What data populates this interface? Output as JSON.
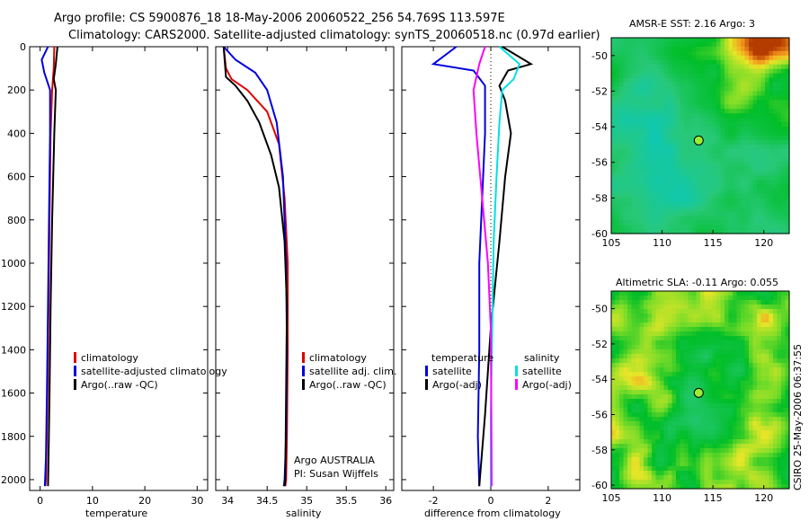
{
  "title": {
    "line1": "Argo profile: CS 5900876_18 18-May-2006 20060522_256 54.769S 113.597E",
    "line2": "Climatology: CARS2000. Satellite-adjusted climatology: synTS_20060518.nc (0.97d earlier)"
  },
  "colors": {
    "climatology": "#dd0000",
    "satellite": "#0000dd",
    "argo": "#000000",
    "sat_sal": "#00e0e0",
    "argo_adj_sal": "#ff00ff"
  },
  "chart_data": [
    {
      "type": "line",
      "name": "temperature",
      "xlabel": "temperature",
      "ylabel": "",
      "xlim": [
        -2,
        32
      ],
      "ylim": [
        2050,
        0
      ],
      "xticks": [
        0,
        10,
        20,
        30
      ],
      "yticks": [
        0,
        200,
        400,
        600,
        800,
        1000,
        1200,
        1400,
        1600,
        1800,
        2000
      ],
      "series": [
        {
          "name": "climatology",
          "color": "#dd0000",
          "x": [
            2.7,
            2.6,
            2.3,
            2.0,
            1.8,
            1.6,
            1.4,
            1.2,
            1.1,
            1.0
          ],
          "y": [
            0,
            100,
            200,
            400,
            800,
            1200,
            1600,
            1900,
            2000,
            2030
          ]
        },
        {
          "name": "satellite-adjusted climatology",
          "color": "#0000dd",
          "x": [
            1.5,
            0.3,
            0.8,
            1.9,
            1.9,
            1.7,
            1.5,
            1.3,
            1.1,
            0.9
          ],
          "y": [
            0,
            60,
            120,
            200,
            400,
            800,
            1200,
            1600,
            1900,
            2030
          ]
        },
        {
          "name": "Argo(..raw -QC)",
          "color": "#000000",
          "x": [
            3.3,
            3.0,
            2.6,
            3.0,
            2.7,
            2.5,
            2.3,
            2.0,
            1.8,
            1.6,
            1.5
          ],
          "y": [
            0,
            80,
            150,
            200,
            400,
            600,
            800,
            1200,
            1600,
            1900,
            2030
          ]
        }
      ],
      "legend": [
        "climatology",
        "satellite-adjusted climatology",
        "Argo(..raw -QC)"
      ]
    },
    {
      "type": "line",
      "name": "salinity",
      "xlabel": "salinity",
      "ylabel": "",
      "xlim": [
        33.85,
        36.1
      ],
      "ylim": [
        2050,
        0
      ],
      "xticks": [
        34,
        34.5,
        35,
        35.5,
        36
      ],
      "yticks": [
        0,
        200,
        400,
        600,
        800,
        1000,
        1200,
        1400,
        1600,
        1800,
        2000
      ],
      "series": [
        {
          "name": "climatology",
          "color": "#dd0000",
          "x": [
            33.95,
            33.98,
            34.05,
            34.25,
            34.5,
            34.65,
            34.72,
            34.76,
            34.76,
            34.75,
            34.74,
            34.73
          ],
          "y": [
            0,
            100,
            150,
            200,
            300,
            450,
            700,
            1000,
            1400,
            1800,
            2000,
            2030
          ]
        },
        {
          "name": "satellite adj. clim.",
          "color": "#0000dd",
          "x": [
            33.95,
            34.1,
            34.35,
            34.5,
            34.62,
            34.7,
            34.74,
            34.75,
            34.74,
            34.72,
            34.71
          ],
          "y": [
            0,
            60,
            120,
            200,
            350,
            600,
            1000,
            1400,
            1800,
            2000,
            2030
          ]
        },
        {
          "name": "Argo(..raw -QC)",
          "color": "#000000",
          "x": [
            33.95,
            33.98,
            34.1,
            34.25,
            34.4,
            34.55,
            34.65,
            34.72,
            34.75,
            34.74,
            34.73,
            34.72
          ],
          "y": [
            0,
            140,
            180,
            250,
            350,
            500,
            650,
            900,
            1200,
            1600,
            2000,
            2030
          ]
        }
      ],
      "legend": [
        "climatology",
        "satellite adj. clim.",
        "Argo(..raw -QC)"
      ],
      "annotations": [
        "Argo AUSTRALIA",
        "PI: Susan Wijffels"
      ]
    },
    {
      "type": "line",
      "name": "difference",
      "xlabel": "difference from climatology",
      "ylabel": "",
      "xlim": [
        -3.1,
        3.1
      ],
      "ylim": [
        2050,
        0
      ],
      "xticks": [
        -2,
        0,
        2
      ],
      "yticks": [
        0,
        200,
        400,
        600,
        800,
        1000,
        1200,
        1400,
        1600,
        1800,
        2000
      ],
      "series": [
        {
          "name": "temperature satellite",
          "color": "#0000dd",
          "x": [
            -1.2,
            -2.0,
            -0.6,
            -0.2,
            -0.2,
            -0.3,
            -0.4,
            -0.4,
            -0.45,
            -0.4
          ],
          "y": [
            0,
            80,
            110,
            180,
            400,
            700,
            1000,
            1400,
            1800,
            2030
          ]
        },
        {
          "name": "temperature Argo(-adj)",
          "color": "#000000",
          "x": [
            0.4,
            1.4,
            0.6,
            0.3,
            0.5,
            0.7,
            0.5,
            0.3,
            0.0,
            -0.2,
            -0.4
          ],
          "y": [
            0,
            80,
            110,
            180,
            250,
            400,
            600,
            900,
            1300,
            1700,
            2030
          ]
        },
        {
          "name": "salinity satellite",
          "color": "#00e0e0",
          "x": [
            0.3,
            1.0,
            0.8,
            0.4,
            0.3,
            0.2,
            0.1,
            0.05,
            0.0,
            0.0
          ],
          "y": [
            0,
            80,
            150,
            200,
            350,
            600,
            900,
            1300,
            1700,
            2030
          ]
        },
        {
          "name": "salinity Argo(-adj)",
          "color": "#ff00ff",
          "x": [
            -0.2,
            -0.4,
            -0.6,
            -0.5,
            -0.3,
            -0.1,
            0.0,
            0.02,
            0.03
          ],
          "y": [
            0,
            80,
            200,
            400,
            700,
            1000,
            1300,
            1700,
            2030
          ]
        }
      ],
      "legend_headers": [
        "temperature",
        "salinity"
      ],
      "legend": [
        "satellite",
        "Argo(-adj)",
        "satellite",
        "Argo(-adj)"
      ]
    },
    {
      "type": "heatmap",
      "name": "sst_map",
      "title": "AMSR-E SST: 2.16 Argo: 3",
      "xlim": [
        105,
        122.5
      ],
      "ylim": [
        -60,
        -49
      ],
      "xticks": [
        105,
        110,
        115,
        120
      ],
      "yticks": [
        -50,
        -52,
        -54,
        -56,
        -58,
        -60
      ],
      "marker": {
        "lon": 113.6,
        "lat": -54.77
      }
    },
    {
      "type": "heatmap",
      "name": "sla_map",
      "title": "Altimetric SLA: -0.11 Argo: 0.055",
      "xlim": [
        105,
        122.5
      ],
      "ylim": [
        -60.2,
        -49
      ],
      "xticks": [
        105,
        110,
        115,
        120
      ],
      "yticks": [
        -50,
        -52,
        -54,
        -56,
        -58,
        -60
      ],
      "marker": {
        "lon": 113.6,
        "lat": -54.77
      }
    }
  ],
  "watermark": "CSIRO 25-May-2006 06:37:55"
}
